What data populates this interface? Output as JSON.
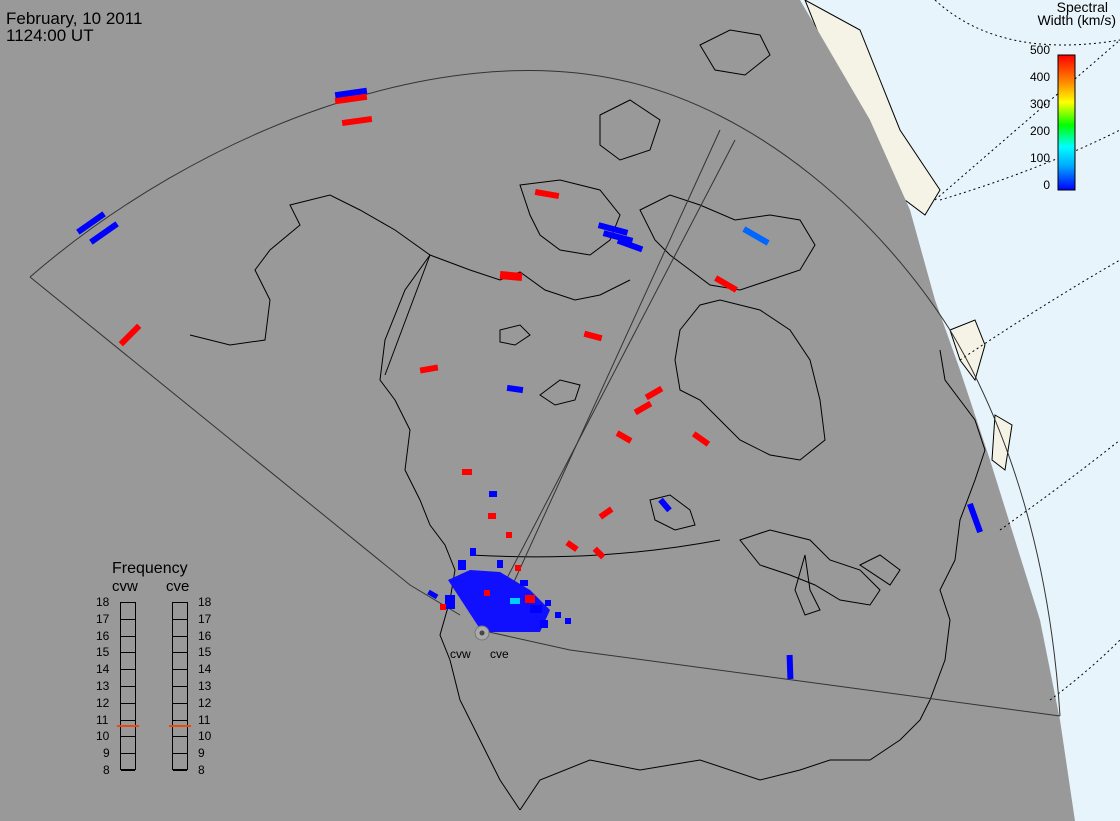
{
  "header": {
    "date": "February, 10 2011",
    "time": "1124:00 UT"
  },
  "colorbar": {
    "title_line1": "Spectral",
    "title_line2": "Width (km/s)",
    "ticks": [
      "500",
      "400",
      "300",
      "200",
      "100",
      "0"
    ],
    "range": [
      0,
      500
    ],
    "colors": [
      "#0000ff",
      "#00aaff",
      "#00ffff",
      "#00ff00",
      "#ffff00",
      "#ff8800",
      "#ff0000"
    ]
  },
  "radars": {
    "west_label": "cvw",
    "east_label": "cve"
  },
  "frequency": {
    "title": "Frequency",
    "columns": [
      "cvw",
      "cve"
    ],
    "scale": [
      "18",
      "17",
      "16",
      "15",
      "14",
      "13",
      "12",
      "11",
      "10",
      "9",
      "8"
    ],
    "cvw_mhz": 10.6,
    "cve_mhz": 10.6,
    "marker_color": "#e84a10"
  },
  "colors": {
    "night_shade": "#999999",
    "day_ocean": "#e8f4fb",
    "day_land": "#f5f3e6",
    "high_width": "#ff0000",
    "low_width": "#0000ff"
  }
}
